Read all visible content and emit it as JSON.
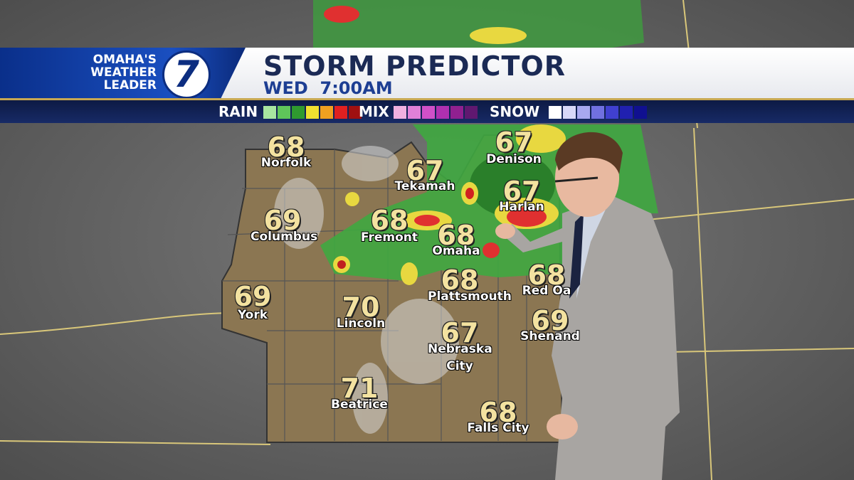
{
  "header": {
    "brand_lines": [
      "OMAHA'S",
      "WEATHER",
      "LEADER"
    ],
    "logo": "7",
    "title": "STORM PREDICTOR",
    "subtitle": "WED  7:00AM"
  },
  "legend": [
    {
      "label": "RAIN",
      "colors": [
        "#a8e6a0",
        "#5fc55a",
        "#2f9a2f",
        "#f0e030",
        "#f0a020",
        "#e02020",
        "#a01010"
      ]
    },
    {
      "label": "MIX",
      "colors": [
        "#f0b0e0",
        "#e080d8",
        "#d050c8",
        "#b030b0",
        "#902090",
        "#601870"
      ]
    },
    {
      "label": "SNOW",
      "colors": [
        "#ffffff",
        "#d8d8f8",
        "#a8a8f0",
        "#7070e0",
        "#4040d0",
        "#2020b0",
        "#101090"
      ]
    }
  ],
  "cities": [
    {
      "temp": "68",
      "name": "Norfolk"
    },
    {
      "temp": "69",
      "name": "Columbus"
    },
    {
      "temp": "69",
      "name": "York"
    },
    {
      "temp": "67",
      "name": "Tekamah"
    },
    {
      "temp": "68",
      "name": "Fremont"
    },
    {
      "temp": "68",
      "name": "Omaha"
    },
    {
      "temp": "70",
      "name": "Lincoln"
    },
    {
      "temp": "68",
      "name": "Plattsmouth"
    },
    {
      "temp": "67",
      "name": "Nebraska City"
    },
    {
      "temp": "71",
      "name": "Beatrice"
    },
    {
      "temp": "68",
      "name": "Falls City"
    },
    {
      "temp": "67",
      "name": "Denison"
    },
    {
      "temp": "67",
      "name": "Harlan"
    },
    {
      "temp": "68",
      "name": "Red Oa"
    },
    {
      "temp": "69",
      "name": "Shenand"
    }
  ]
}
